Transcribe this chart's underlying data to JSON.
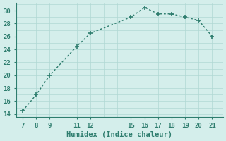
{
  "x": [
    7,
    8,
    9,
    11,
    12,
    15,
    16,
    17,
    18,
    19,
    20,
    21
  ],
  "y": [
    14.5,
    17.0,
    20.0,
    24.5,
    26.5,
    29.0,
    30.5,
    29.5,
    29.5,
    29.0,
    28.5,
    26.0
  ],
  "xticks": [
    7,
    8,
    9,
    11,
    12,
    15,
    16,
    17,
    18,
    19,
    20,
    21
  ],
  "yticks": [
    14,
    16,
    18,
    20,
    22,
    24,
    26,
    28,
    30
  ],
  "xlim": [
    6.5,
    21.8
  ],
  "ylim": [
    13.5,
    31.2
  ],
  "xlabel": "Humidex (Indice chaleur)",
  "line_color": "#2e7d6e",
  "bg_color": "#d4eeeb",
  "grid_color": "#b0d8d4",
  "marker": "+",
  "marker_size": 5,
  "line_width": 1.0,
  "xlabel_fontsize": 7.5,
  "tick_fontsize": 6.5
}
